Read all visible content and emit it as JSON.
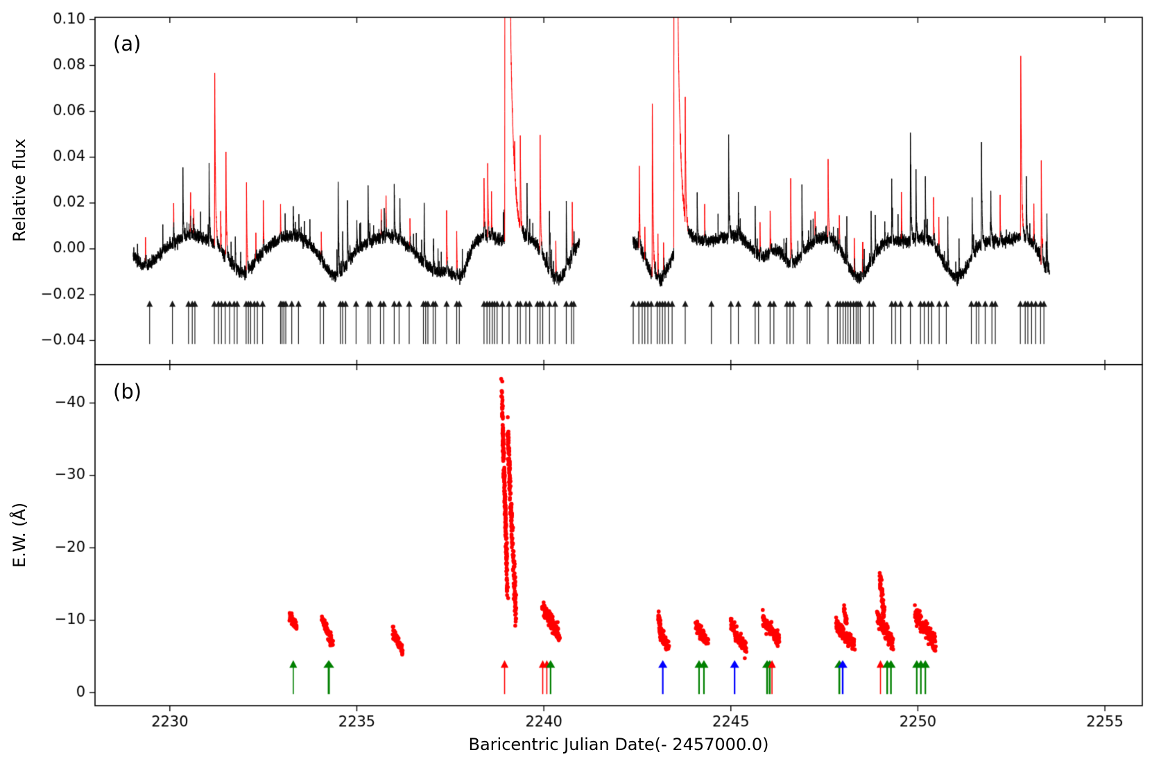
{
  "figure": {
    "background": "#ffffff",
    "xlabel": "Baricentric Julian Date(- 2457000.0)",
    "panel_a": {
      "label": "(a)",
      "ylabel": "Relative flux"
    },
    "panel_b": {
      "label": "(b)",
      "ylabel": "E.W. (Å)"
    }
  },
  "chart_data": [
    {
      "id": "a",
      "type": "line",
      "title": "(a)",
      "ylabel": "Relative flux",
      "xlim": [
        2228.0,
        2256.0
      ],
      "ylim": [
        -0.0505,
        0.101
      ],
      "yticks": [
        0.1,
        0.08,
        0.06,
        0.04,
        0.02,
        0.0,
        -0.02,
        -0.04
      ],
      "ytick_labels": [
        "0.10",
        "0.08",
        "0.06",
        "0.04",
        "0.02",
        "0.00",
        "−0.02",
        "−0.04"
      ],
      "line_color": "#000000",
      "flare_color": "#ff0000",
      "grid": false,
      "base_level": 0.0045,
      "wiggle_amp": 0.0012,
      "noise_sigma": 0.0013,
      "segments": [
        [
          2229.02,
          2240.96
        ],
        [
          2242.38,
          2253.52
        ]
      ],
      "modulation_minima": [
        [
          2229.35,
          0.013,
          0.45
        ],
        [
          2231.95,
          0.016,
          0.5
        ],
        [
          2234.45,
          0.017,
          0.48
        ],
        [
          2237.2,
          0.016,
          0.6
        ],
        [
          2237.78,
          0.009,
          0.25
        ],
        [
          2240.35,
          0.017,
          0.45
        ],
        [
          2243.05,
          0.017,
          0.45
        ],
        [
          2245.85,
          0.007,
          0.35
        ],
        [
          2246.6,
          0.011,
          0.38
        ],
        [
          2248.45,
          0.016,
          0.5
        ],
        [
          2251.05,
          0.016,
          0.52
        ],
        [
          2253.65,
          0.016,
          0.45
        ]
      ],
      "flares": [
        [
          2229.35,
          0.012,
          "r"
        ],
        [
          2230.1,
          0.01,
          "r"
        ],
        [
          2230.35,
          0.03,
          "k"
        ],
        [
          2230.55,
          0.014,
          "r"
        ],
        [
          2230.64,
          0.011,
          "r"
        ],
        [
          2231.05,
          0.034,
          "k"
        ],
        [
          2231.2,
          0.075,
          "r"
        ],
        [
          2231.36,
          0.018,
          "r"
        ],
        [
          2231.5,
          0.045,
          "r"
        ],
        [
          2231.75,
          0.016,
          "k"
        ],
        [
          2232.05,
          0.039,
          "r"
        ],
        [
          2232.3,
          0.012,
          "r"
        ],
        [
          2232.5,
          0.022,
          "r"
        ],
        [
          2232.96,
          0.015,
          "r"
        ],
        [
          2233.3,
          0.012,
          "k"
        ],
        [
          2233.45,
          0.01,
          "k"
        ],
        [
          2234.05,
          0.013,
          "r"
        ],
        [
          2234.5,
          0.041,
          "k"
        ],
        [
          2234.62,
          0.017,
          "k"
        ],
        [
          2234.75,
          0.027,
          "k"
        ],
        [
          2235.0,
          0.014,
          "k"
        ],
        [
          2235.3,
          0.026,
          "k"
        ],
        [
          2235.65,
          0.012,
          "r"
        ],
        [
          2235.78,
          0.016,
          "r"
        ],
        [
          2236.0,
          0.024,
          "k"
        ],
        [
          2236.15,
          0.021,
          "k"
        ],
        [
          2236.42,
          0.013,
          "r"
        ],
        [
          2236.8,
          0.026,
          "k"
        ],
        [
          2237.05,
          0.015,
          "k"
        ],
        [
          2237.4,
          0.027,
          "r"
        ],
        [
          2237.67,
          0.02,
          "r"
        ],
        [
          2238.4,
          0.028,
          "r"
        ],
        [
          2238.5,
          0.033,
          "r"
        ],
        [
          2238.6,
          0.018,
          "r"
        ],
        [
          2238.96,
          0.42,
          "r"
        ],
        [
          2239.1,
          0.02,
          "r"
        ],
        [
          2239.22,
          0.012,
          "r"
        ],
        [
          2239.37,
          0.04,
          "k"
        ],
        [
          2239.55,
          0.024,
          "k"
        ],
        [
          2239.9,
          0.049,
          "r"
        ],
        [
          2240.15,
          0.027,
          "k"
        ],
        [
          2240.32,
          0.018,
          "r"
        ],
        [
          2240.6,
          0.03,
          "k"
        ],
        [
          2240.76,
          0.024,
          "r"
        ],
        [
          2242.55,
          0.037,
          "r"
        ],
        [
          2242.7,
          0.014,
          "r"
        ],
        [
          2242.9,
          0.075,
          "r"
        ],
        [
          2243.05,
          0.02,
          "r"
        ],
        [
          2243.2,
          0.015,
          "r"
        ],
        [
          2243.48,
          0.35,
          "r"
        ],
        [
          2243.78,
          0.05,
          "k"
        ],
        [
          2244.1,
          0.021,
          "k"
        ],
        [
          2244.3,
          0.015,
          "r"
        ],
        [
          2244.94,
          0.043,
          "k"
        ],
        [
          2245.2,
          0.02,
          "k"
        ],
        [
          2245.65,
          0.019,
          "k"
        ],
        [
          2245.78,
          0.016,
          "r"
        ],
        [
          2246.05,
          0.021,
          "r"
        ],
        [
          2246.6,
          0.036,
          "r"
        ],
        [
          2246.9,
          0.032,
          "k"
        ],
        [
          2247.25,
          0.015,
          "r"
        ],
        [
          2247.6,
          0.035,
          "r"
        ],
        [
          2247.9,
          0.016,
          "r"
        ],
        [
          2248.1,
          0.019,
          "k"
        ],
        [
          2248.3,
          0.017,
          "r"
        ],
        [
          2248.52,
          0.014,
          "r"
        ],
        [
          2248.75,
          0.022,
          "k"
        ],
        [
          2248.86,
          0.017,
          "k"
        ],
        [
          2249.3,
          0.025,
          "k"
        ],
        [
          2249.56,
          0.02,
          "r"
        ],
        [
          2249.8,
          0.048,
          "k"
        ],
        [
          2249.95,
          0.029,
          "k"
        ],
        [
          2250.2,
          0.027,
          "k"
        ],
        [
          2250.42,
          0.021,
          "r"
        ],
        [
          2250.56,
          0.014,
          "r"
        ],
        [
          2250.8,
          0.022,
          "k"
        ],
        [
          2251.1,
          0.016,
          "k"
        ],
        [
          2251.45,
          0.024,
          "k"
        ],
        [
          2251.7,
          0.044,
          "k"
        ],
        [
          2251.95,
          0.021,
          "k"
        ],
        [
          2252.2,
          0.015,
          "r"
        ],
        [
          2252.75,
          0.079,
          "r"
        ],
        [
          2252.9,
          0.027,
          "k"
        ],
        [
          2253.1,
          0.019,
          "r"
        ],
        [
          2253.3,
          0.041,
          "r"
        ],
        [
          2253.45,
          0.026,
          "k"
        ]
      ],
      "flare_arrows": [
        2229.46,
        2230.07,
        2230.5,
        2230.6,
        2230.67,
        2231.19,
        2231.3,
        2231.38,
        2231.48,
        2231.6,
        2231.72,
        2231.8,
        2232.04,
        2232.1,
        2232.16,
        2232.26,
        2232.34,
        2232.48,
        2232.96,
        2233.0,
        2233.05,
        2233.1,
        2233.26,
        2233.44,
        2234.02,
        2234.11,
        2234.56,
        2234.62,
        2234.7,
        2234.98,
        2235.3,
        2235.36,
        2235.63,
        2235.72,
        2236.0,
        2236.13,
        2236.4,
        2236.78,
        2236.84,
        2236.9,
        2237.04,
        2237.1,
        2237.4,
        2237.67,
        2237.74,
        2238.4,
        2238.48,
        2238.55,
        2238.62,
        2238.68,
        2238.75,
        2238.89,
        2239.07,
        2239.3,
        2239.37,
        2239.52,
        2239.62,
        2239.83,
        2239.9,
        2239.97,
        2240.15,
        2240.3,
        2240.6,
        2240.74,
        2240.8,
        2242.39,
        2242.54,
        2242.63,
        2242.7,
        2242.78,
        2242.87,
        2243.03,
        2243.1,
        2243.17,
        2243.24,
        2243.33,
        2243.43,
        2243.78,
        2244.48,
        2245.0,
        2245.2,
        2245.65,
        2245.74,
        2246.05,
        2246.15,
        2246.5,
        2246.58,
        2246.67,
        2247.04,
        2247.11,
        2247.6,
        2247.85,
        2247.92,
        2248.0,
        2248.07,
        2248.13,
        2248.2,
        2248.28,
        2248.35,
        2248.4,
        2248.46,
        2248.7,
        2248.81,
        2249.3,
        2249.4,
        2249.54,
        2249.8,
        2250.07,
        2250.17,
        2250.28,
        2250.37,
        2250.57,
        2250.76,
        2251.43,
        2251.56,
        2251.63,
        2251.8,
        2251.98,
        2252.07,
        2252.74,
        2252.87,
        2252.94,
        2253.04,
        2253.15,
        2253.28,
        2253.37
      ],
      "arrow_span": [
        -0.0415,
        -0.0225
      ],
      "arrow_color": "#1a1a1a"
    },
    {
      "id": "b",
      "type": "scatter",
      "title": "(b)",
      "ylabel": "E.W. (Å)",
      "xlim": [
        2228.0,
        2256.0
      ],
      "ylim_bottom": 1.8,
      "ylim_top": -45.3,
      "yticks": [
        0,
        -10,
        -20,
        -30,
        -40
      ],
      "ytick_labels": [
        "0",
        "−10",
        "−20",
        "−30",
        "−40"
      ],
      "xticks": [
        2230,
        2235,
        2240,
        2245,
        2250,
        2255
      ],
      "xtick_labels": [
        "2230",
        "2235",
        "2240",
        "2245",
        "2250",
        "2255"
      ],
      "marker_color": "#ff0000",
      "grid": false,
      "clusters": [
        {
          "t0": 2233.2,
          "t1": 2233.4,
          "ew0": -10.6,
          "ew1": -8.9,
          "n": 55,
          "jt": 0.01,
          "jew": 0.35
        },
        {
          "t0": 2234.08,
          "t1": 2234.36,
          "ew0": -9.8,
          "ew1": -7.0,
          "n": 65,
          "jt": 0.012,
          "jew": 0.4
        },
        {
          "t0": 2235.95,
          "t1": 2236.22,
          "ew0": -8.6,
          "ew1": -5.6,
          "n": 55,
          "jt": 0.012,
          "jew": 0.4
        },
        {
          "t0": 2238.87,
          "t1": 2239.03,
          "ew0": -42.5,
          "ew1": -13.5,
          "n": 230,
          "jt": 0.008,
          "jew": 1.0
        },
        {
          "t0": 2239.03,
          "t1": 2239.25,
          "ew0": -36.5,
          "ew1": -10.4,
          "n": 190,
          "jt": 0.01,
          "jew": 1.0
        },
        {
          "t0": 2239.95,
          "t1": 2240.42,
          "ew0": -12.0,
          "ew1": -7.9,
          "n": 120,
          "jt": 0.015,
          "jew": 0.55
        },
        {
          "t0": 2243.06,
          "t1": 2243.14,
          "ew0": -10.6,
          "ew1": -8.4,
          "n": 30,
          "jt": 0.006,
          "jew": 0.4
        },
        {
          "t0": 2243.1,
          "t1": 2243.32,
          "ew0": -8.6,
          "ew1": -6.4,
          "n": 70,
          "jt": 0.015,
          "jew": 0.45
        },
        {
          "t0": 2244.05,
          "t1": 2244.4,
          "ew0": -9.2,
          "ew1": -6.9,
          "n": 70,
          "jt": 0.015,
          "jew": 0.45
        },
        {
          "t0": 2245.0,
          "t1": 2245.42,
          "ew0": -9.4,
          "ew1": -5.8,
          "n": 85,
          "jt": 0.015,
          "jew": 0.5
        },
        {
          "t0": 2245.86,
          "t1": 2246.3,
          "ew0": -10.0,
          "ew1": -7.2,
          "n": 100,
          "jt": 0.015,
          "jew": 0.5
        },
        {
          "t0": 2248.02,
          "t1": 2248.1,
          "ew0": -11.5,
          "ew1": -9.5,
          "n": 22,
          "jt": 0.005,
          "jew": 0.4
        },
        {
          "t0": 2247.82,
          "t1": 2248.3,
          "ew0": -9.3,
          "ew1": -6.5,
          "n": 100,
          "jt": 0.015,
          "jew": 0.5
        },
        {
          "t0": 2248.98,
          "t1": 2249.1,
          "ew0": -16.0,
          "ew1": -10.6,
          "n": 55,
          "jt": 0.006,
          "jew": 0.8
        },
        {
          "t0": 2248.92,
          "t1": 2249.34,
          "ew0": -10.6,
          "ew1": -6.9,
          "n": 120,
          "jt": 0.015,
          "jew": 0.55
        },
        {
          "t0": 2249.96,
          "t1": 2250.06,
          "ew0": -11.3,
          "ew1": -10.3,
          "n": 15,
          "jt": 0.005,
          "jew": 0.35
        },
        {
          "t0": 2249.92,
          "t1": 2250.48,
          "ew0": -10.8,
          "ew1": -6.7,
          "n": 120,
          "jt": 0.02,
          "jew": 0.55
        }
      ],
      "arrows": [
        {
          "t": 2233.3,
          "color": "green",
          "w": 1.6
        },
        {
          "t": 2234.25,
          "color": "green",
          "w": 3.0
        },
        {
          "t": 2238.95,
          "color": "red",
          "w": 1.6
        },
        {
          "t": 2239.97,
          "color": "red",
          "w": 1.6
        },
        {
          "t": 2240.08,
          "color": "red",
          "w": 1.6
        },
        {
          "t": 2240.18,
          "color": "green",
          "w": 2.2
        },
        {
          "t": 2243.18,
          "color": "blue",
          "w": 2.2
        },
        {
          "t": 2244.15,
          "color": "green",
          "w": 2.2
        },
        {
          "t": 2244.28,
          "color": "green",
          "w": 2.2
        },
        {
          "t": 2245.1,
          "color": "blue",
          "w": 2.2
        },
        {
          "t": 2245.97,
          "color": "green",
          "w": 2.6
        },
        {
          "t": 2246.04,
          "color": "green",
          "w": 2.6
        },
        {
          "t": 2246.1,
          "color": "red",
          "w": 1.6
        },
        {
          "t": 2247.9,
          "color": "green",
          "w": 2.6
        },
        {
          "t": 2247.99,
          "color": "blue",
          "w": 2.4
        },
        {
          "t": 2249.0,
          "color": "red",
          "w": 1.6
        },
        {
          "t": 2249.18,
          "color": "green",
          "w": 2.4
        },
        {
          "t": 2249.28,
          "color": "green",
          "w": 2.4
        },
        {
          "t": 2249.97,
          "color": "green",
          "w": 2.2
        },
        {
          "t": 2250.08,
          "color": "green",
          "w": 2.2
        },
        {
          "t": 2250.2,
          "color": "green",
          "w": 2.2
        }
      ],
      "arrow_colors": {
        "green": "#008000",
        "red": "#ff0000",
        "blue": "#0000ff"
      },
      "arrow_span_ew": [
        0.2,
        -4.5
      ]
    }
  ]
}
